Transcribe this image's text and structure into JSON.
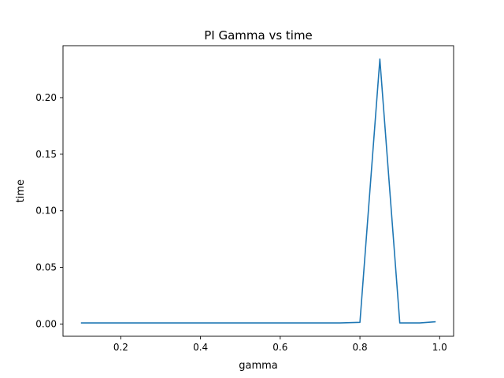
{
  "chart_data": {
    "type": "line",
    "title": "PI Gamma vs time",
    "xlabel": "gamma",
    "ylabel": "time",
    "xlim": [
      0.055,
      1.035
    ],
    "ylim": [
      -0.0108,
      0.2459
    ],
    "xticks": [
      0.2,
      0.4,
      0.6,
      0.8,
      1.0
    ],
    "xtick_labels": [
      "0.2",
      "0.4",
      "0.6",
      "0.8",
      "1.0"
    ],
    "yticks": [
      0.0,
      0.05,
      0.1,
      0.15,
      0.2
    ],
    "ytick_labels": [
      "0.00",
      "0.05",
      "0.10",
      "0.15",
      "0.20"
    ],
    "grid": false,
    "legend": "none",
    "series": [
      {
        "color": "#1f77b4",
        "x": [
          0.1,
          0.15,
          0.2,
          0.25,
          0.3,
          0.35,
          0.4,
          0.45,
          0.5,
          0.55,
          0.6,
          0.65,
          0.7,
          0.75,
          0.8,
          0.85,
          0.9,
          0.95,
          0.99
        ],
        "y": [
          0.001,
          0.001,
          0.001,
          0.001,
          0.001,
          0.001,
          0.001,
          0.001,
          0.001,
          0.001,
          0.001,
          0.001,
          0.001,
          0.001,
          0.0015,
          0.234,
          0.001,
          0.001,
          0.002
        ]
      }
    ]
  }
}
